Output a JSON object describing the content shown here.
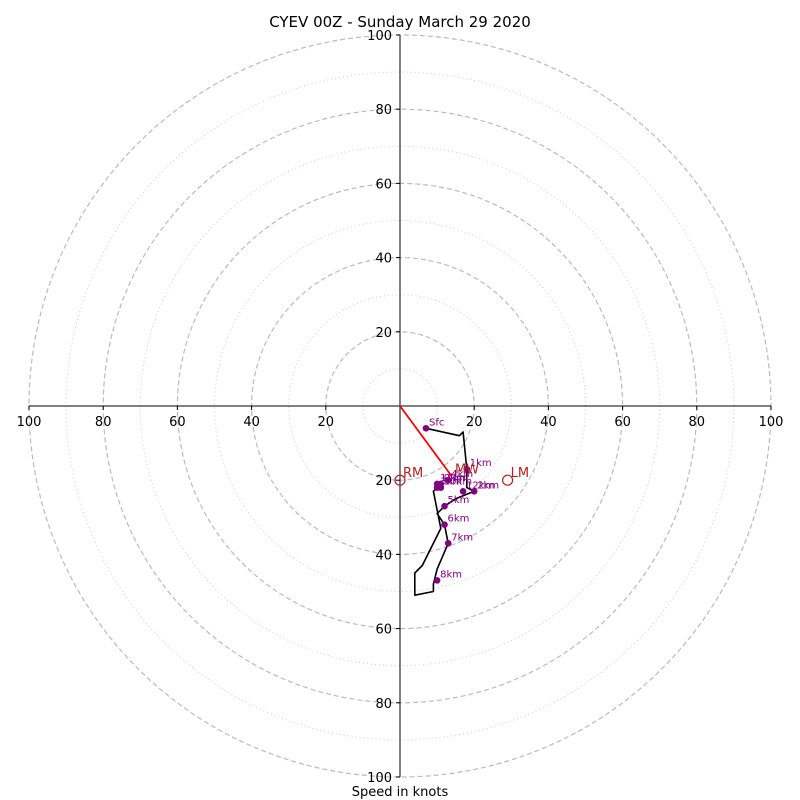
{
  "chart_data": {
    "type": "scatter",
    "title": "CYEV 00Z - Sunday March 29 2020",
    "xlabel": "Speed in knots",
    "ylabel": "",
    "xlim": [
      -100,
      100
    ],
    "ylim": [
      -100,
      100
    ],
    "ring_major": [
      20,
      40,
      60,
      80,
      100
    ],
    "ring_minor": [
      10,
      30,
      50,
      70,
      90
    ],
    "tick_labels": {
      "top": [
        "20",
        "40",
        "60",
        "80",
        "100"
      ],
      "bottom": [
        "20",
        "40",
        "60",
        "80",
        "100"
      ],
      "left": [
        "20",
        "40",
        "60",
        "80",
        "100"
      ],
      "right": [
        "20",
        "40",
        "60",
        "80",
        "100"
      ]
    },
    "hodograph_line": [
      [
        7,
        -6
      ],
      [
        16,
        -8
      ],
      [
        17,
        -7
      ],
      [
        18,
        -17
      ],
      [
        18,
        -22
      ],
      [
        20,
        -23
      ],
      [
        15,
        -25
      ],
      [
        12,
        -27
      ],
      [
        10,
        -29
      ],
      [
        12,
        -32
      ],
      [
        13,
        -37
      ],
      [
        10,
        -44
      ],
      [
        9,
        -48
      ],
      [
        9,
        -50
      ],
      [
        4,
        -51
      ],
      [
        4,
        -45
      ],
      [
        6,
        -43
      ],
      [
        11,
        -33
      ],
      [
        9,
        -23
      ],
      [
        11,
        -21
      ]
    ],
    "height_markers": [
      {
        "label": "Sfc",
        "x": 7,
        "y": -6
      },
      {
        "label": "1km",
        "x": 18,
        "y": -17
      },
      {
        "label": "2km",
        "x": 20,
        "y": -23
      },
      {
        "label": "3km",
        "x": 10,
        "y": -22
      },
      {
        "label": "4km",
        "x": 13,
        "y": -20
      },
      {
        "label": "5km",
        "x": 12,
        "y": -27
      },
      {
        "label": "6km",
        "x": 12,
        "y": -32
      },
      {
        "label": "7km",
        "x": 13,
        "y": -37
      },
      {
        "label": "8km",
        "x": 10,
        "y": -47
      },
      {
        "label": "9km",
        "x": 11,
        "y": -21
      },
      {
        "label": "10km",
        "x": 11,
        "y": -22
      },
      {
        "label": "11km",
        "x": 10,
        "y": -21
      },
      {
        "label": "12km",
        "x": 17,
        "y": -23
      }
    ],
    "motion_markers": [
      {
        "label": "RM",
        "x": 0,
        "y": -20
      },
      {
        "label": "MW",
        "x": 14,
        "y": -19
      },
      {
        "label": "LM",
        "x": 29,
        "y": -20
      }
    ],
    "shear_vector": [
      [
        0,
        0
      ],
      [
        14,
        -19
      ]
    ],
    "grid": true,
    "colors": {
      "line": "#000000",
      "markers": "#800080",
      "motion": "#b22222",
      "shear": "#ff0000",
      "grid": "#bbbbbb"
    }
  }
}
